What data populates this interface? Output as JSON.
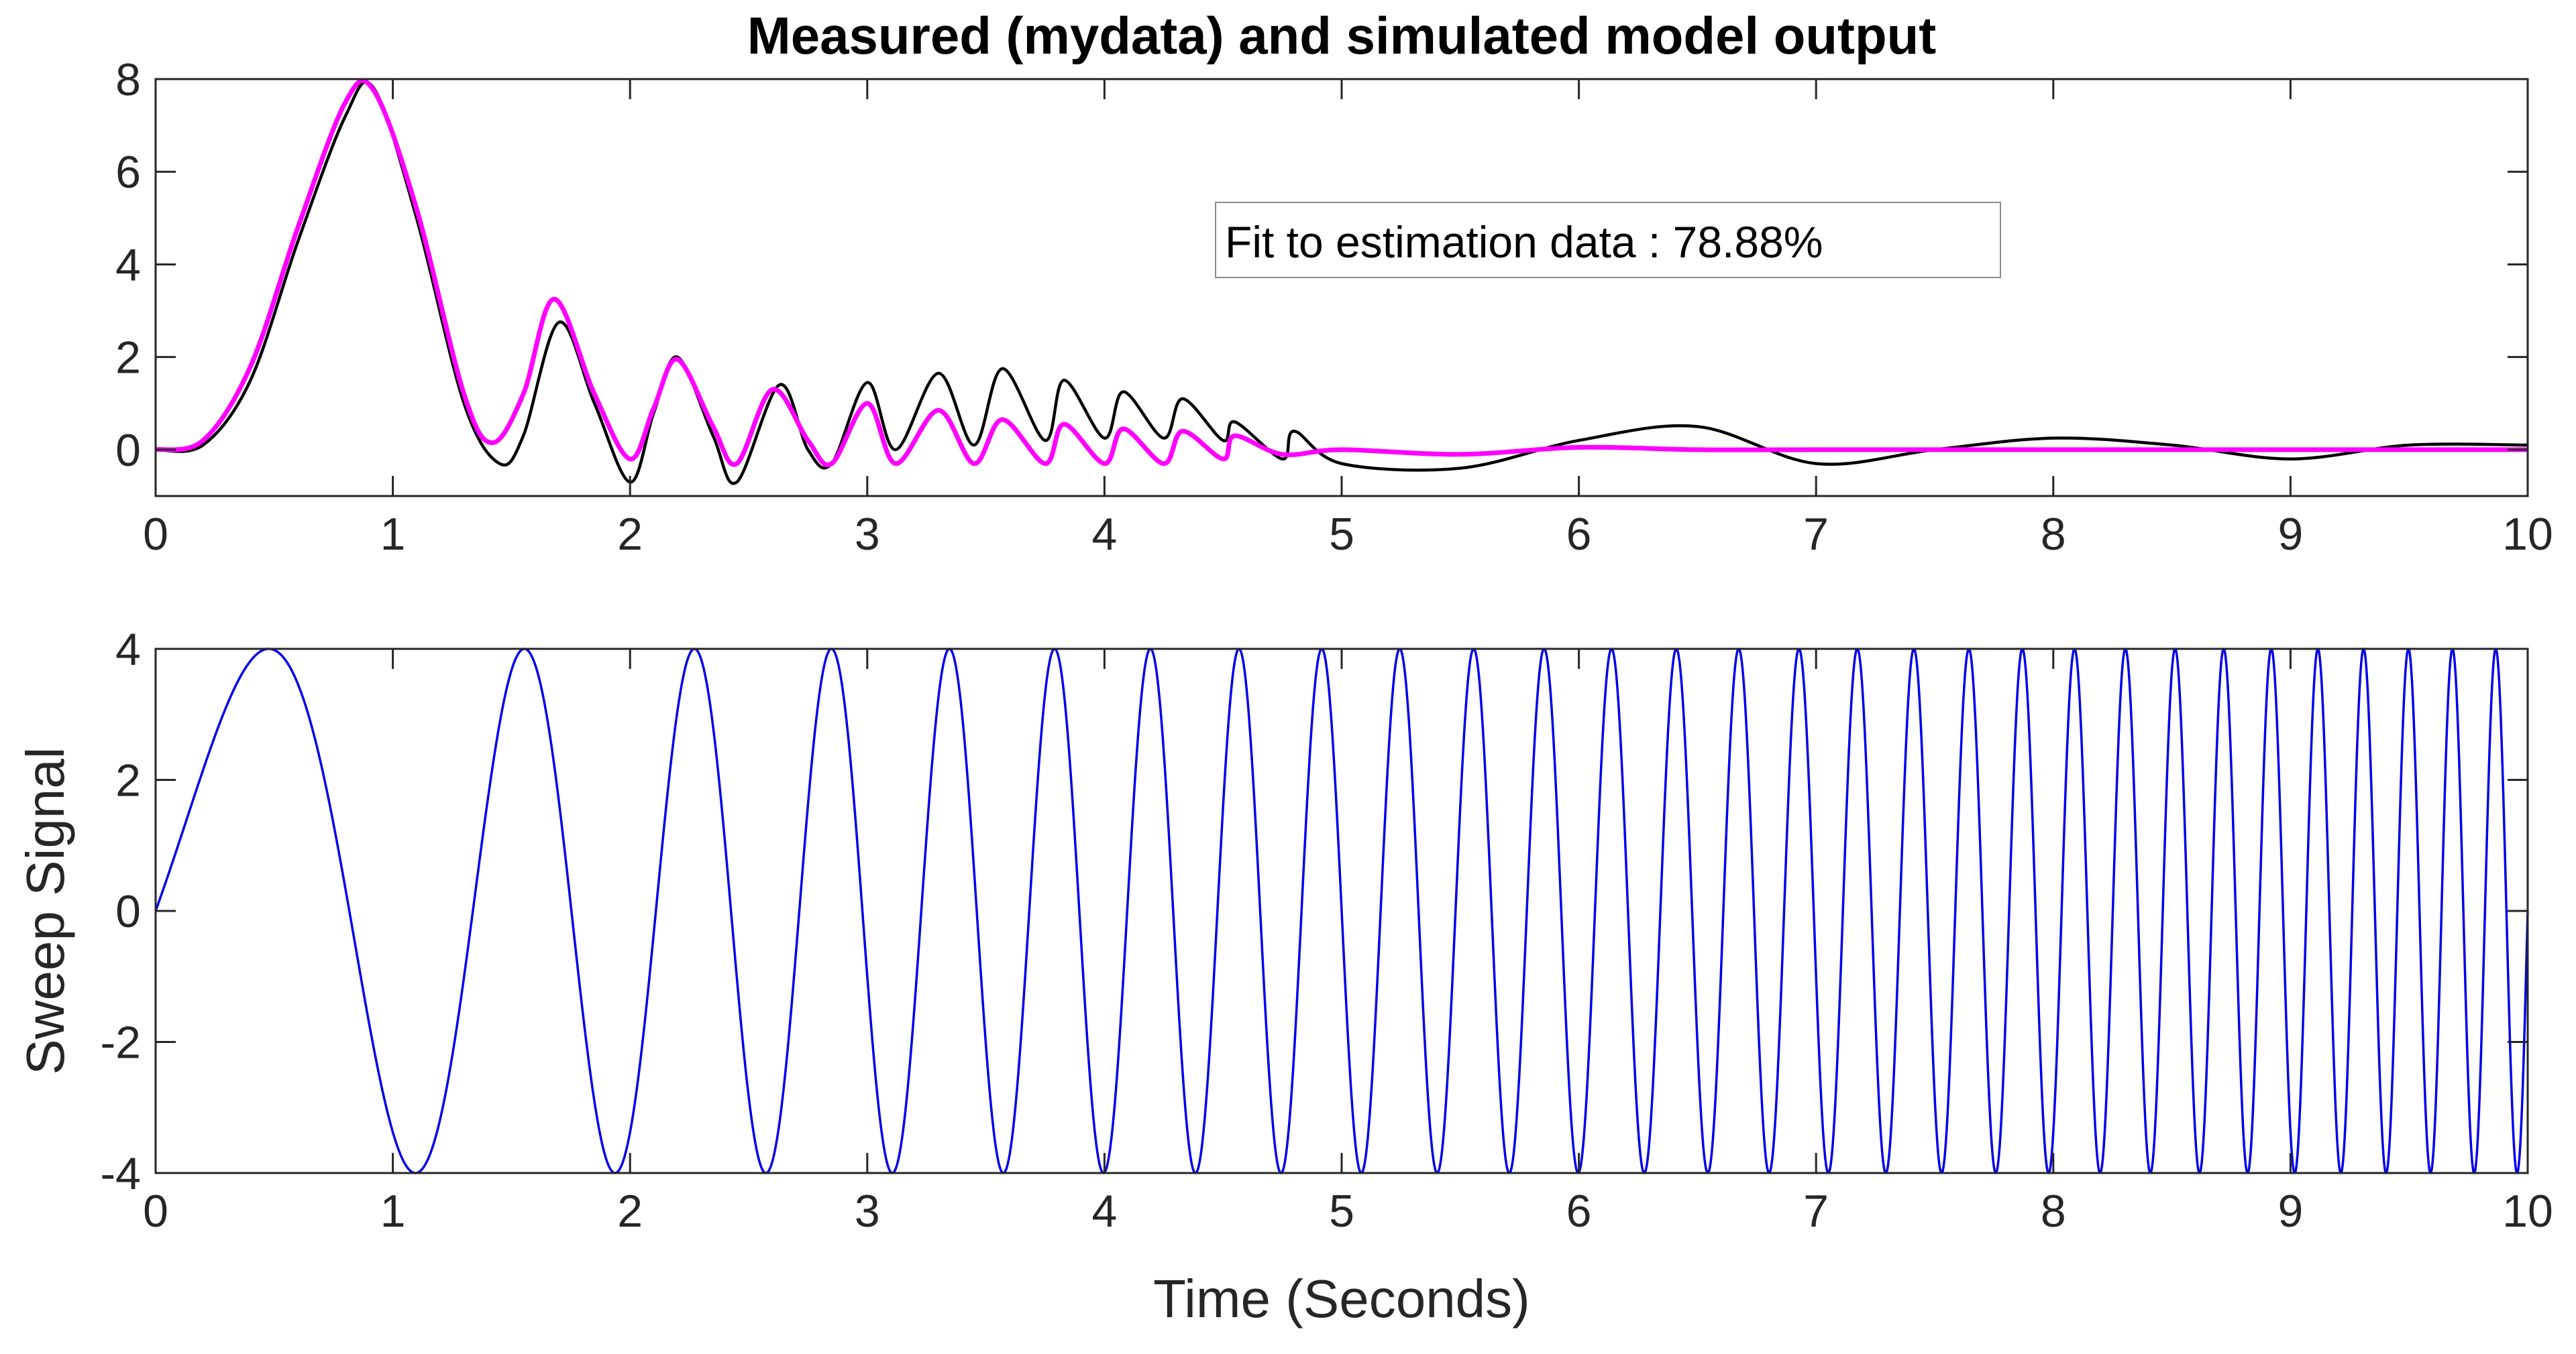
{
  "chart_data": [
    {
      "type": "line",
      "title": "Measured (mydata) and simulated model output",
      "xlabel": "",
      "ylabel": "",
      "xlim": [
        0,
        10
      ],
      "ylim": [
        -1,
        8
      ],
      "xticks": [
        "0",
        "1",
        "2",
        "3",
        "4",
        "5",
        "6",
        "7",
        "8",
        "9",
        "10"
      ],
      "yticks": [
        "0",
        "2",
        "4",
        "6",
        "8"
      ],
      "annotation": "Fit to estimation data : 78.88%",
      "grid": false,
      "series": [
        {
          "color": "#000000",
          "x": [
            0,
            0.2,
            0.4,
            0.6,
            0.8,
            0.92,
            1.1,
            1.3,
            1.45,
            1.55,
            1.7,
            1.85,
            2.0,
            2.1,
            2.2,
            2.35,
            2.45,
            2.63,
            2.75,
            2.85,
            3.0,
            3.12,
            3.3,
            3.45,
            3.57,
            3.75,
            3.83,
            4.0,
            4.08,
            4.25,
            4.33,
            4.5,
            4.55,
            4.75,
            4.8,
            5.0,
            5.5,
            6.0,
            6.5,
            7.0,
            7.5,
            8.0,
            8.5,
            9.0,
            9.5,
            10.0
          ],
          "y": [
            0,
            0.1,
            1.5,
            4.5,
            7.2,
            7.8,
            5.0,
            1.0,
            -0.3,
            0.3,
            2.75,
            1.0,
            -0.7,
            0.8,
            2.0,
            0.3,
            -0.7,
            1.4,
            0.0,
            -0.3,
            1.45,
            0.0,
            1.65,
            0.1,
            1.75,
            0.2,
            1.5,
            0.25,
            1.25,
            0.25,
            1.1,
            0.2,
            0.6,
            -0.2,
            0.4,
            -0.3,
            -0.4,
            0.2,
            0.5,
            -0.3,
            0.0,
            0.25,
            0.1,
            -0.2,
            0.1,
            0.1
          ]
        },
        {
          "color": "#ff00ff",
          "x": [
            0,
            0.2,
            0.4,
            0.6,
            0.8,
            0.92,
            1.1,
            1.3,
            1.42,
            1.55,
            1.68,
            1.85,
            2.0,
            2.1,
            2.2,
            2.35,
            2.45,
            2.6,
            2.75,
            2.85,
            3.0,
            3.12,
            3.3,
            3.45,
            3.57,
            3.75,
            3.83,
            4.0,
            4.08,
            4.25,
            4.33,
            4.5,
            4.55,
            4.75,
            5.0,
            5.5,
            6.0,
            6.5,
            7.0,
            7.5,
            8.0,
            8.5,
            9.0,
            9.5,
            10.0
          ],
          "y": [
            0,
            0.2,
            1.8,
            4.8,
            7.5,
            7.75,
            5.2,
            1.2,
            0.15,
            1.2,
            3.25,
            1.2,
            -0.2,
            0.9,
            1.95,
            0.5,
            -0.3,
            1.3,
            0.2,
            -0.3,
            1.0,
            -0.3,
            0.85,
            -0.3,
            0.65,
            -0.3,
            0.55,
            -0.3,
            0.45,
            -0.3,
            0.4,
            -0.2,
            0.3,
            -0.1,
            0.0,
            -0.1,
            0.05,
            0.0,
            0.0,
            0.0,
            0.0,
            0.0,
            0.0,
            0.0,
            0.0
          ]
        }
      ]
    },
    {
      "type": "line",
      "title": "",
      "xlabel": "Time (Seconds)",
      "ylabel": "Sweep Signal",
      "xlim": [
        0,
        10
      ],
      "ylim": [
        -4,
        4
      ],
      "xticks": [
        "0",
        "1",
        "2",
        "3",
        "4",
        "5",
        "6",
        "7",
        "8",
        "9",
        "10"
      ],
      "yticks": [
        "-4",
        "-2",
        "0",
        "2",
        "4"
      ],
      "grid": false,
      "series": [
        {
          "color": "#0000ee",
          "function": "4 sin(2π(0.4 t + 0.26 t²))",
          "amplitude": 4,
          "f0": 0.4,
          "sweep_rate": 0.26,
          "sample_count": 6000
        }
      ]
    }
  ]
}
